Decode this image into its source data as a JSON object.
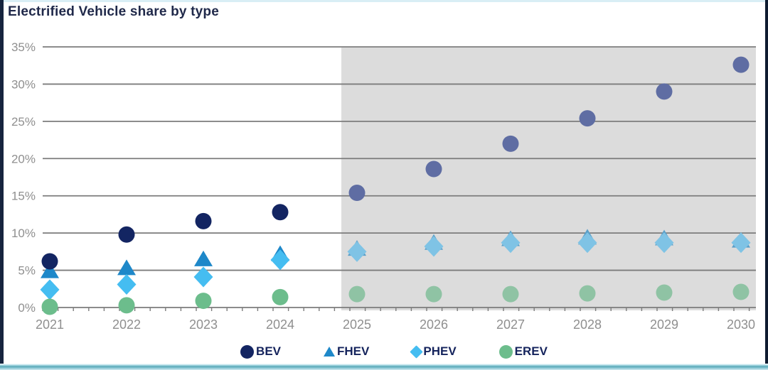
{
  "title": "Electrified Vehicle share by type",
  "legend": {
    "items": [
      {
        "label": "BEV",
        "marker": "circle"
      },
      {
        "label": "FHEV",
        "marker": "triangle"
      },
      {
        "label": "PHEV",
        "marker": "diamond"
      },
      {
        "label": "EREV",
        "marker": "circle"
      }
    ]
  },
  "chart_data": {
    "type": "scatter",
    "title": "Electrified Vehicle share by type",
    "xlabel": "",
    "ylabel": "",
    "units": "percent share",
    "categories": [
      "2021",
      "2022",
      "2023",
      "2024",
      "2025",
      "2026",
      "2027",
      "2028",
      "2029",
      "2030"
    ],
    "y_tick_labels": [
      "0%",
      "5%",
      "10%",
      "15%",
      "20%",
      "25%",
      "30%",
      "35%"
    ],
    "ylim": [
      0,
      35
    ],
    "y_step": 5,
    "grid": "horizontal",
    "legend_position": "bottom",
    "forecast_start_category": "2025",
    "forecast_background": "#dcdcdc",
    "grid_color": "#7c7c7c",
    "tick_label_color": "#8f8f8f",
    "series": [
      {
        "name": "BEV",
        "marker": "circle",
        "color": "#132562",
        "forecast_color": "#5f6da3",
        "values": [
          6.2,
          9.8,
          11.6,
          12.8,
          15.4,
          18.6,
          22.0,
          25.4,
          29.0,
          32.6
        ]
      },
      {
        "name": "FHEV",
        "marker": "triangle",
        "color": "#1e88c9",
        "forecast_color": "#5ba0c9",
        "values": [
          4.9,
          5.3,
          6.5,
          7.2,
          7.9,
          8.7,
          9.2,
          9.4,
          9.3,
          9.0
        ]
      },
      {
        "name": "PHEV",
        "marker": "diamond",
        "color": "#45bdf1",
        "forecast_color": "#7fc3e5",
        "values": [
          2.4,
          3.1,
          4.1,
          6.4,
          7.5,
          8.2,
          8.7,
          8.7,
          8.7,
          8.7
        ]
      },
      {
        "name": "EREV",
        "marker": "circle",
        "color": "#6cbd8c",
        "forecast_color": "#8fc3a4",
        "values": [
          0.1,
          0.3,
          0.9,
          1.4,
          1.8,
          1.8,
          1.8,
          1.9,
          2.0,
          2.1
        ]
      }
    ]
  }
}
